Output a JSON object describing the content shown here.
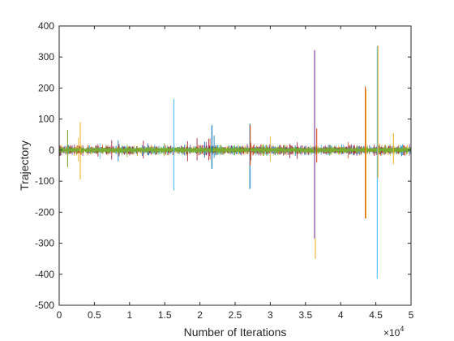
{
  "chart_data": {
    "type": "line",
    "title": "",
    "xlabel": "Number of Iterations",
    "ylabel": "Trajectory",
    "xlim": [
      0,
      50000
    ],
    "ylim": [
      -500,
      400
    ],
    "x_ticks": [
      0,
      5000,
      10000,
      15000,
      20000,
      25000,
      30000,
      35000,
      40000,
      45000,
      50000
    ],
    "x_tick_labels": [
      "0",
      "0.5",
      "1",
      "1.5",
      "2",
      "2.5",
      "3",
      "3.5",
      "4",
      "4.5",
      "5"
    ],
    "x_multiplier_label": "×10",
    "x_multiplier_exponent": "4",
    "y_ticks": [
      -500,
      -400,
      -300,
      -200,
      -100,
      0,
      100,
      200,
      300,
      400
    ],
    "y_tick_labels": [
      "-500",
      "-400",
      "-300",
      "-200",
      "-100",
      "0",
      "100",
      "200",
      "300",
      "400"
    ],
    "grid": false,
    "box": true,
    "noise_band": [
      -20,
      20
    ],
    "colors": [
      "#0072bd",
      "#d95319",
      "#edb120",
      "#7e2f8e",
      "#77ac30",
      "#4dbeee",
      "#a2142f"
    ],
    "spikes": [
      {
        "x": 3000,
        "min": -95,
        "max": 90,
        "color": "#edb120"
      },
      {
        "x": 1200,
        "min": -55,
        "max": 65,
        "color": "#77ac30"
      },
      {
        "x": 16300,
        "min": -130,
        "max": 165,
        "color": "#4dbeee"
      },
      {
        "x": 21700,
        "min": -60,
        "max": 80,
        "color": "#0072bd"
      },
      {
        "x": 27100,
        "min": -125,
        "max": 85,
        "color": "#0072bd"
      },
      {
        "x": 27150,
        "min": -50,
        "max": 80,
        "color": "#d95319"
      },
      {
        "x": 36300,
        "min": -285,
        "max": 322,
        "color": "#7e2f8e"
      },
      {
        "x": 36400,
        "min": -350,
        "max": -285,
        "color": "#edb120"
      },
      {
        "x": 36600,
        "min": -40,
        "max": 70,
        "color": "#d95319"
      },
      {
        "x": 43500,
        "min": -220,
        "max": 205,
        "color": "#d95319"
      },
      {
        "x": 43600,
        "min": -220,
        "max": 195,
        "color": "#edb120"
      },
      {
        "x": 45200,
        "min": -415,
        "max": 335,
        "color": "#4dbeee"
      },
      {
        "x": 45300,
        "min": -90,
        "max": 338,
        "color": "#edb120"
      },
      {
        "x": 47500,
        "min": -45,
        "max": 55,
        "color": "#edb120"
      }
    ]
  }
}
